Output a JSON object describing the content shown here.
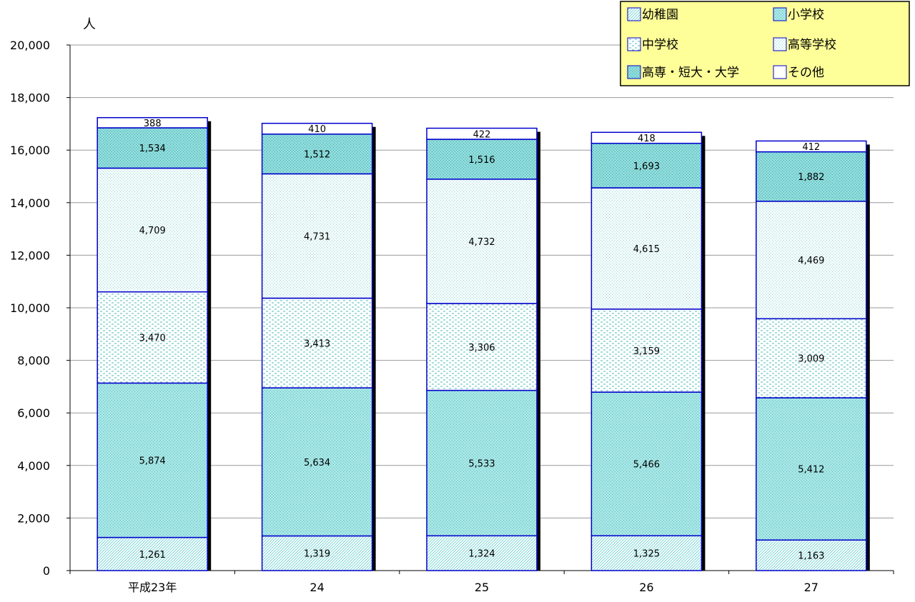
{
  "chart_data": {
    "type": "bar",
    "stacked": true,
    "unit_label": "人",
    "categories": [
      "平成23年",
      "24",
      "25",
      "26",
      "27"
    ],
    "ylim": [
      0,
      20000
    ],
    "yticks": [
      "0",
      "2,000",
      "4,000",
      "6,000",
      "8,000",
      "10,000",
      "12,000",
      "14,000",
      "16,000",
      "18,000",
      "20,000"
    ],
    "grid": true,
    "legend_position": "top-right",
    "series": [
      {
        "name": "幼稚園",
        "values": [
          1261,
          1319,
          1324,
          1325,
          1163
        ],
        "labels": [
          "1,261",
          "1,319",
          "1,324",
          "1,325",
          "1,163"
        ],
        "fill": "#ffffff",
        "pattern": "diagonal",
        "color": "#7fd6d6"
      },
      {
        "name": "小学校",
        "values": [
          5874,
          5634,
          5533,
          5466,
          5412
        ],
        "labels": [
          "5,874",
          "5,634",
          "5,533",
          "5,466",
          "5,412"
        ],
        "fill": "#a8e6e6",
        "pattern": "dots",
        "color": "#5fbfbf"
      },
      {
        "name": "中学校",
        "values": [
          3470,
          3413,
          3306,
          3159,
          3009
        ],
        "labels": [
          "3,470",
          "3,413",
          "3,306",
          "3,159",
          "3,009"
        ],
        "fill": "#ffffff",
        "pattern": "dashes",
        "color": "#4fb8b8"
      },
      {
        "name": "高等学校",
        "values": [
          4709,
          4731,
          4732,
          4615,
          4469
        ],
        "labels": [
          "4,709",
          "4,731",
          "4,732",
          "4,615",
          "4,469"
        ],
        "fill": "#f4fbfb",
        "pattern": "dots",
        "color": "#9fdada"
      },
      {
        "name": "高専・短大・大学",
        "values": [
          1534,
          1512,
          1516,
          1693,
          1882
        ],
        "labels": [
          "1,534",
          "1,512",
          "1,516",
          "1,693",
          "1,882"
        ],
        "fill": "#8fdcdc",
        "pattern": "dots",
        "color": "#4aa8a8"
      },
      {
        "name": "その他",
        "values": [
          388,
          410,
          422,
          418,
          412
        ],
        "labels": [
          "388",
          "410",
          "422",
          "418",
          "412"
        ],
        "fill": "#ffffff",
        "pattern": "none",
        "color": "#ffffff"
      }
    ],
    "colors": {
      "bar_outline": "#0000cc",
      "shadow": "#000000",
      "legend_bg": "#ffff99",
      "grid": "#9a9a9a"
    }
  }
}
